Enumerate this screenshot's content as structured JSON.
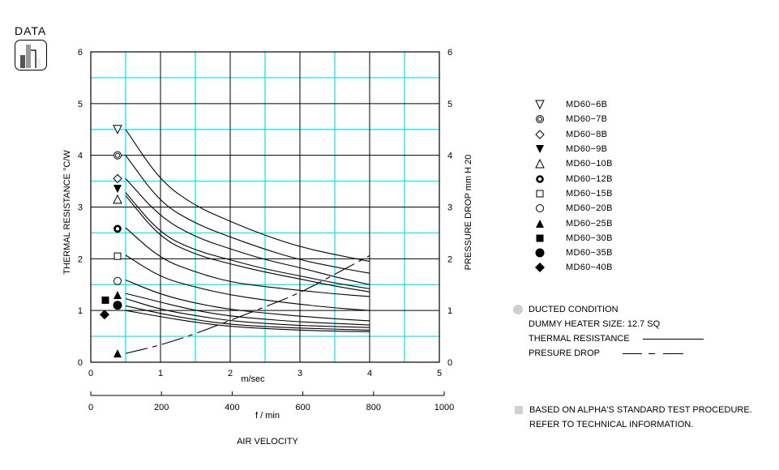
{
  "logo": {
    "title": "DATA",
    "icon": "bar-chart-icon"
  },
  "chart_data": {
    "type": "line",
    "title": "",
    "xlabel": "AIR VELOCITY",
    "x_primary_unit": "m/sec",
    "x_secondary_unit": "f / min",
    "ylabel_left": "THERMAL  RESISTANCE   °C/W",
    "ylabel_right": "PRESSURE  DROP    mm H 20",
    "xlim": [
      0,
      5
    ],
    "ylim": [
      0,
      6
    ],
    "x_ticks": [
      "0",
      "1",
      "2",
      "3",
      "4",
      "5"
    ],
    "x_secondary_ticks": [
      "0",
      "200",
      "400",
      "600",
      "800",
      "1000"
    ],
    "y_ticks_left": [
      "0",
      "1",
      "2",
      "3",
      "4",
      "5",
      "6"
    ],
    "y_ticks_right": [
      "0",
      "1",
      "2",
      "3",
      "4",
      "5",
      "6"
    ],
    "grid": true,
    "x": [
      0.5,
      1,
      1.5,
      2,
      2.5,
      3,
      3.5,
      4
    ],
    "series": [
      {
        "name": "MD60-6B",
        "marker": "triangle-down-open",
        "marker_y": 4.5,
        "values": [
          4.5,
          3.5,
          3.02,
          2.72,
          2.45,
          2.23,
          2.08,
          1.95
        ]
      },
      {
        "name": "MD60-7B",
        "marker": "double-circle",
        "marker_y": 4.0,
        "values": [
          4.0,
          3.08,
          2.68,
          2.42,
          2.18,
          1.98,
          1.84,
          1.72
        ]
      },
      {
        "name": "MD60-8B",
        "marker": "diamond-open",
        "marker_y": 3.55,
        "values": [
          3.55,
          2.8,
          2.42,
          2.19,
          1.98,
          1.83,
          1.65,
          1.5
        ]
      },
      {
        "name": "MD60-9B",
        "marker": "triangle-down-filled",
        "marker_y": 3.35,
        "values": [
          3.28,
          2.48,
          2.16,
          1.98,
          1.8,
          1.67,
          1.53,
          1.42
        ]
      },
      {
        "name": "MD60-10B",
        "marker": "triangle-up-open",
        "marker_y": 3.15,
        "values": [
          3.22,
          2.4,
          2.08,
          1.9,
          1.74,
          1.61,
          1.47,
          1.36
        ]
      },
      {
        "name": "MD60-12B",
        "marker": "ring-thick",
        "marker_y": 2.58,
        "values": [
          2.6,
          2.0,
          1.74,
          1.55,
          1.46,
          1.39,
          1.32,
          1.27
        ]
      },
      {
        "name": "MD60-15B",
        "marker": "square-open",
        "marker_y": 2.05,
        "values": [
          2.07,
          1.64,
          1.45,
          1.3,
          1.2,
          1.12,
          1.05,
          1.0
        ]
      },
      {
        "name": "MD60-20B",
        "marker": "circle-open",
        "marker_y": 1.57,
        "values": [
          1.59,
          1.31,
          1.14,
          1.02,
          0.95,
          0.89,
          0.84,
          0.8
        ]
      },
      {
        "name": "MD60-25B",
        "marker": "triangle-up-filled",
        "marker_y": 1.3,
        "values": [
          1.33,
          1.16,
          1.0,
          0.89,
          0.83,
          0.78,
          0.75,
          0.72
        ]
      },
      {
        "name": "MD60-30B",
        "marker": "square-filled",
        "marker_y": 1.2,
        "values": [
          1.23,
          1.02,
          0.9,
          0.8,
          0.75,
          0.71,
          0.69,
          0.67
        ]
      },
      {
        "name": "MD60-35B",
        "marker": "circle-filled",
        "marker_y": 1.1,
        "values": [
          1.09,
          0.94,
          0.82,
          0.73,
          0.69,
          0.66,
          0.64,
          0.62
        ]
      },
      {
        "name": "MD60-40B",
        "marker": "diamond-filled",
        "marker_y": 0.92,
        "values": [
          1.0,
          0.88,
          0.77,
          0.69,
          0.65,
          0.62,
          0.6,
          0.59
        ]
      }
    ],
    "pressure_drop": {
      "name": "PRESURE DROP",
      "style": "dashed",
      "marker": "triangle-up-filled",
      "x": [
        0.5,
        1,
        1.5,
        2,
        2.5,
        3,
        3.5,
        4
      ],
      "values": [
        0.17,
        0.33,
        0.55,
        0.81,
        1.07,
        1.34,
        1.7,
        2.06
      ]
    }
  },
  "legend": [
    {
      "symbol": "triangle-down-open",
      "label": "MD60−6B"
    },
    {
      "symbol": "double-circle",
      "label": "MD60−7B"
    },
    {
      "symbol": "diamond-open",
      "label": "MD60−8B"
    },
    {
      "symbol": "triangle-down-filled",
      "label": "MD60−9B"
    },
    {
      "symbol": "triangle-up-open",
      "label": "MD60−10B"
    },
    {
      "symbol": "ring-thick",
      "label": "MD60−12B"
    },
    {
      "symbol": "square-open",
      "label": "MD60−15B"
    },
    {
      "symbol": "circle-open",
      "label": "MD60−20B"
    },
    {
      "symbol": "triangle-up-filled",
      "label": "MD60−25B"
    },
    {
      "symbol": "square-filled",
      "label": "MD60−30B"
    },
    {
      "symbol": "circle-filled",
      "label": "MD60−35B"
    },
    {
      "symbol": "diamond-filled",
      "label": "MD60−40B"
    }
  ],
  "notes": {
    "condition": "DUCTED CONDITION",
    "heater": "DUMMY HEATER SIZE: 12.7 SQ",
    "thermal_label": "THERMAL RESISTANCE",
    "pressure_label": "PRESURE DROP"
  },
  "footnote": {
    "line1": "BASED ON ALPHA'S STANDARD TEST PROCEDURE.",
    "line2": "REFER TO TECHNICAL INFORMATION."
  },
  "colors": {
    "grid_major": "#000000",
    "grid_minor": "#00e5ee",
    "line": "#000000",
    "note_gray": "#cfcfcf"
  }
}
